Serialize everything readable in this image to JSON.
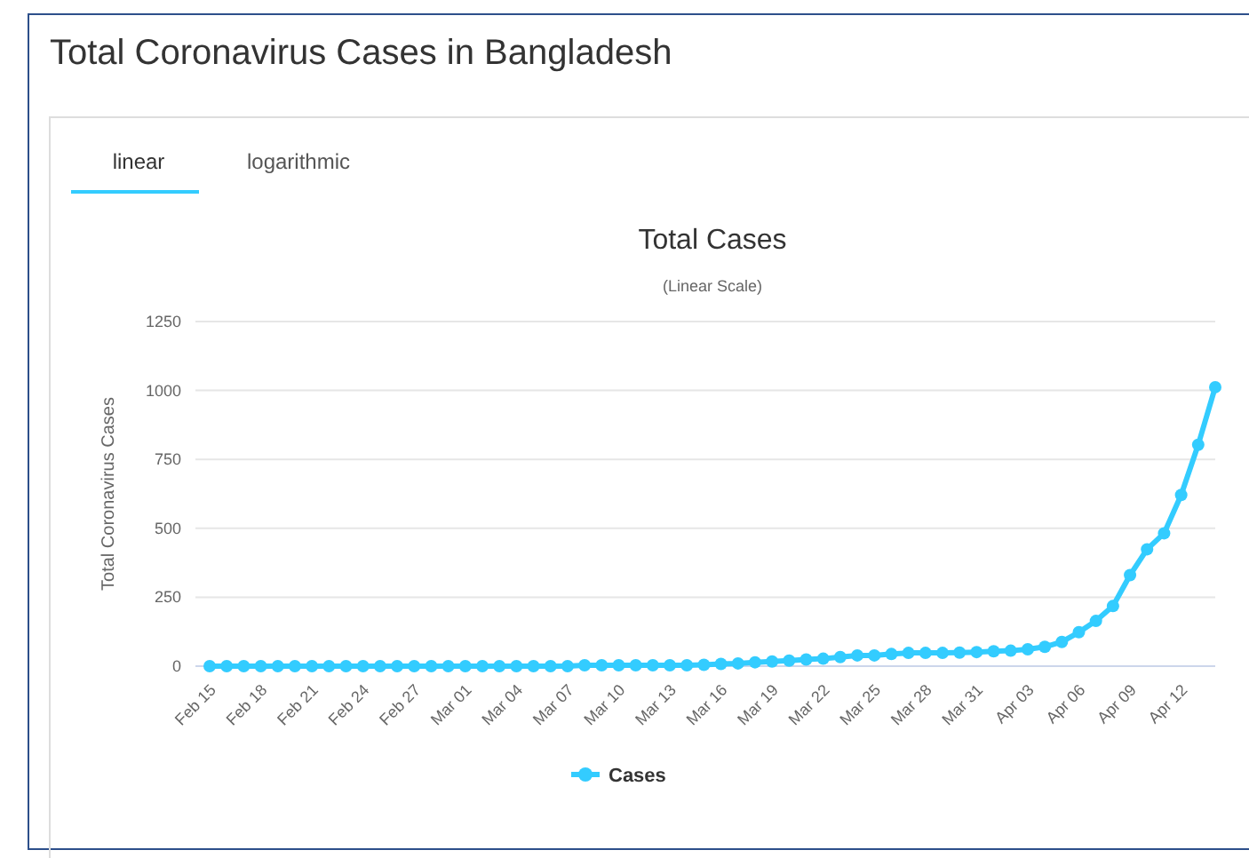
{
  "chart_data": {
    "type": "line",
    "title": "Total Cases",
    "subtitle": "(Linear Scale)",
    "ylabel": "Total Coronavirus Cases",
    "annotations": [
      "Total Coronavirus Cases in Bangladesh",
      "linear",
      "logarithmic"
    ],
    "categories": [
      "Feb 15",
      null,
      null,
      "Feb 18",
      null,
      null,
      "Feb 21",
      null,
      null,
      "Feb 24",
      null,
      null,
      "Feb 27",
      null,
      null,
      "Mar 01",
      null,
      null,
      "Mar 04",
      null,
      null,
      "Mar 07",
      null,
      null,
      "Mar 10",
      null,
      null,
      "Mar 13",
      null,
      null,
      "Mar 16",
      null,
      null,
      "Mar 19",
      null,
      null,
      "Mar 22",
      null,
      null,
      "Mar 25",
      null,
      null,
      "Mar 28",
      null,
      null,
      "Mar 31",
      null,
      null,
      "Apr 03",
      null,
      null,
      "Apr 06",
      null,
      null,
      "Apr 09",
      null,
      null,
      "Apr 12",
      null,
      null
    ],
    "series": [
      {
        "name": "Cases",
        "color": "#33ccff",
        "values": [
          0,
          0,
          0,
          0,
          0,
          0,
          0,
          0,
          0,
          0,
          0,
          0,
          0,
          0,
          0,
          0,
          0,
          0,
          0,
          0,
          0,
          0,
          3,
          3,
          3,
          3,
          3,
          3,
          3,
          5,
          8,
          10,
          14,
          17,
          20,
          24,
          27,
          33,
          39,
          39,
          44,
          48,
          48,
          48,
          49,
          51,
          54,
          56,
          61,
          70,
          88,
          123,
          164,
          218,
          330,
          424,
          482,
          621,
          803,
          1012
        ]
      }
    ],
    "ylim": [
      0,
      1250
    ],
    "yticks": [
      0,
      250,
      500,
      750,
      1000,
      1250
    ],
    "grid": "y",
    "legend": "bottom",
    "marker": "circle",
    "line_style": "solid"
  }
}
